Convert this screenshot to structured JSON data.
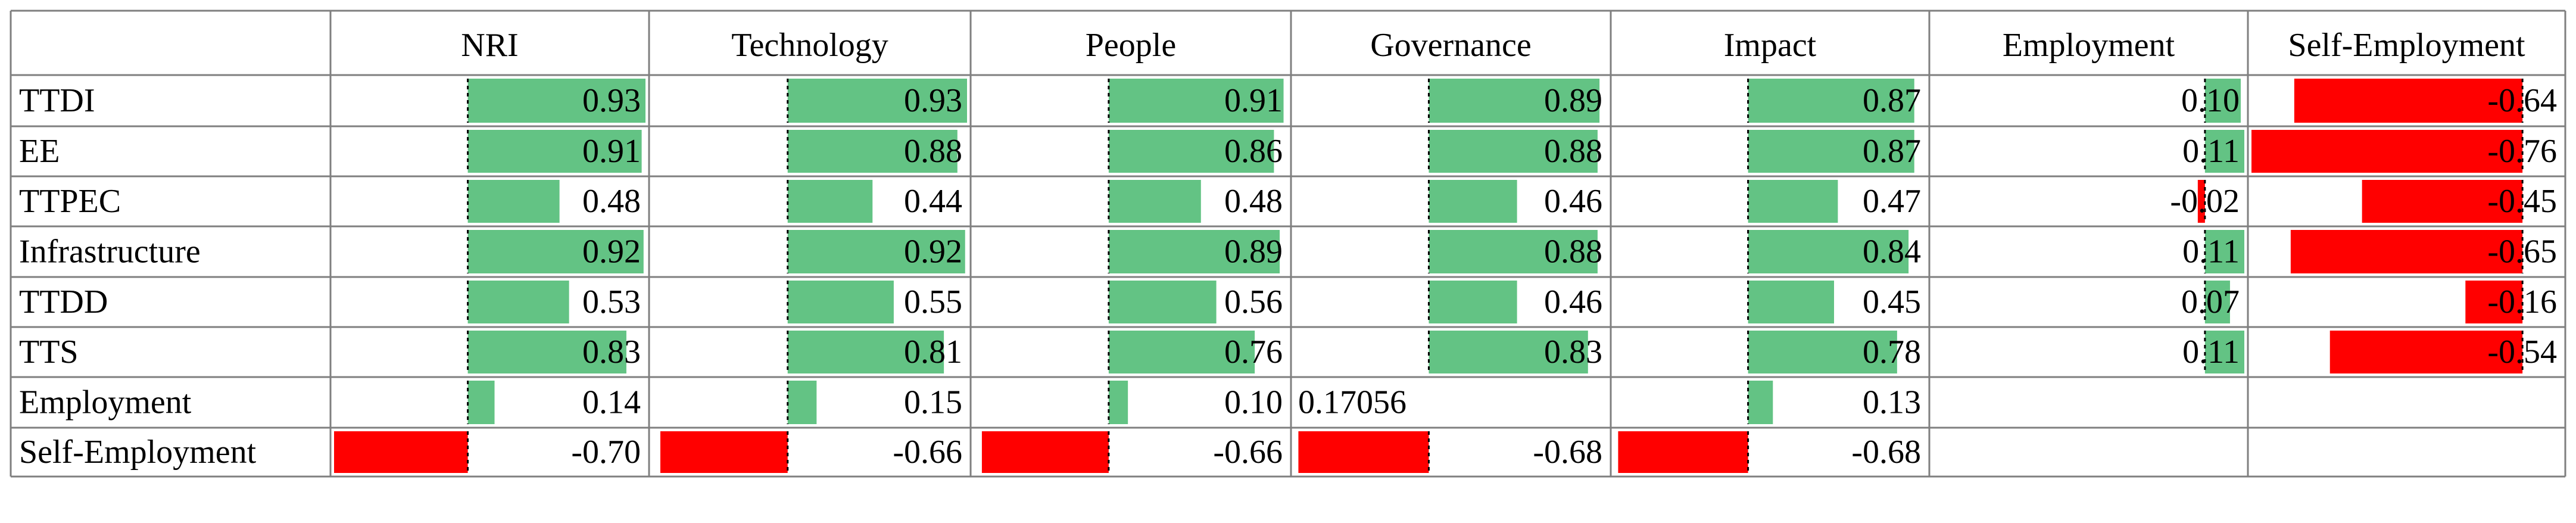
{
  "chart_data": {
    "type": "table",
    "columns": [
      "NRI",
      "Technology",
      "People",
      "Governance",
      "Impact",
      "Employment",
      "Self-Employment"
    ],
    "rows": [
      {
        "label": "TTDI",
        "values": [
          0.93,
          0.93,
          0.91,
          0.89,
          0.87,
          0.1,
          -0.64
        ],
        "display": [
          "0.93",
          "0.93",
          "0.91",
          "0.89",
          "0.87",
          "0.10",
          "-0.64"
        ]
      },
      {
        "label": "EE",
        "values": [
          0.91,
          0.88,
          0.86,
          0.88,
          0.87,
          0.11,
          -0.76
        ],
        "display": [
          "0.91",
          "0.88",
          "0.86",
          "0.88",
          "0.87",
          "0.11",
          "-0.76"
        ]
      },
      {
        "label": "TTPEC",
        "values": [
          0.48,
          0.44,
          0.48,
          0.46,
          0.47,
          -0.02,
          -0.45
        ],
        "display": [
          "0.48",
          "0.44",
          "0.48",
          "0.46",
          "0.47",
          "-0.02",
          "-0.45"
        ]
      },
      {
        "label": "Infrastructure",
        "values": [
          0.92,
          0.92,
          0.89,
          0.88,
          0.84,
          0.11,
          -0.65
        ],
        "display": [
          "0.92",
          "0.92",
          "0.89",
          "0.88",
          "0.84",
          "0.11",
          "-0.65"
        ]
      },
      {
        "label": "TTDD",
        "values": [
          0.53,
          0.55,
          0.56,
          0.46,
          0.45,
          0.07,
          -0.16
        ],
        "display": [
          "0.53",
          "0.55",
          "0.56",
          "0.46",
          "0.45",
          "0.07",
          "-0.16"
        ]
      },
      {
        "label": "TTS",
        "values": [
          0.83,
          0.81,
          0.76,
          0.83,
          0.78,
          0.11,
          -0.54
        ],
        "display": [
          "0.83",
          "0.81",
          "0.76",
          "0.83",
          "0.78",
          "0.11",
          "-0.54"
        ]
      },
      {
        "label": "Employment",
        "values": [
          0.14,
          0.15,
          0.1,
          null,
          0.13,
          null,
          null
        ],
        "display": [
          "0.14",
          "0.15",
          "0.10",
          "0.17056",
          "0.13",
          "",
          ""
        ]
      },
      {
        "label": "Self-Employment",
        "values": [
          -0.7,
          -0.66,
          -0.66,
          -0.68,
          -0.68,
          null,
          null
        ],
        "display": [
          "-0.70",
          "-0.66",
          "-0.66",
          "-0.68",
          "-0.68",
          "",
          ""
        ]
      }
    ],
    "colors": {
      "positive": "#63c384",
      "negative": "#ff0000"
    }
  }
}
